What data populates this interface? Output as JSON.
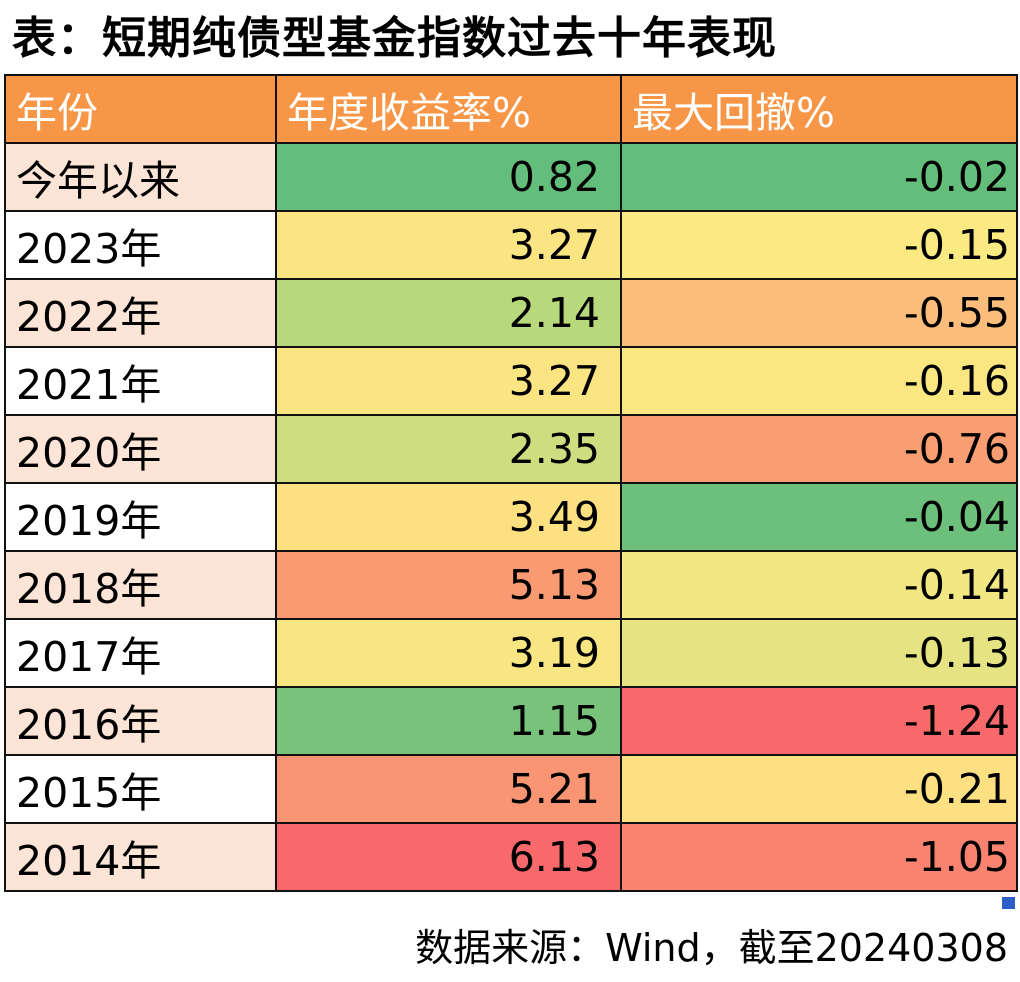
{
  "title": "表：短期纯债型基金指数过去十年表现",
  "chart_data": {
    "type": "table",
    "columns": [
      "年份",
      "年度收益率%",
      "最大回撤%"
    ],
    "rows": [
      {
        "year": "今年以来",
        "return": "0.82",
        "drawdown": "-0.02",
        "return_color": "#63be7b",
        "drawdown_color": "#63be7b"
      },
      {
        "year": "2023年",
        "return": "3.27",
        "drawdown": "-0.15",
        "return_color": "#fae582",
        "drawdown_color": "#fbe982"
      },
      {
        "year": "2022年",
        "return": "2.14",
        "drawdown": "-0.55",
        "return_color": "#b8d87c",
        "drawdown_color": "#fbbd7b"
      },
      {
        "year": "2021年",
        "return": "3.27",
        "drawdown": "-0.16",
        "return_color": "#fae582",
        "drawdown_color": "#fbe782"
      },
      {
        "year": "2020年",
        "return": "2.35",
        "drawdown": "-0.76",
        "return_color": "#cedd80",
        "drawdown_color": "#f99e73"
      },
      {
        "year": "2019年",
        "return": "3.49",
        "drawdown": "-0.04",
        "return_color": "#fde07f",
        "drawdown_color": "#6dc07c"
      },
      {
        "year": "2018年",
        "return": "5.13",
        "drawdown": "-0.14",
        "return_color": "#f99a73",
        "drawdown_color": "#f2e783"
      },
      {
        "year": "2017年",
        "return": "3.19",
        "drawdown": "-0.13",
        "return_color": "#f8e683",
        "drawdown_color": "#e6e382"
      },
      {
        "year": "2016年",
        "return": "1.15",
        "drawdown": "-1.24",
        "return_color": "#79c27c",
        "drawdown_color": "#f8696b"
      },
      {
        "year": "2015年",
        "return": "5.21",
        "drawdown": "-0.21",
        "return_color": "#f99572",
        "drawdown_color": "#fde081"
      },
      {
        "year": "2014年",
        "return": "6.13",
        "drawdown": "-1.05",
        "return_color": "#f8696b",
        "drawdown_color": "#f98370"
      }
    ]
  },
  "source": "数据来源：Wind，截至20240308"
}
